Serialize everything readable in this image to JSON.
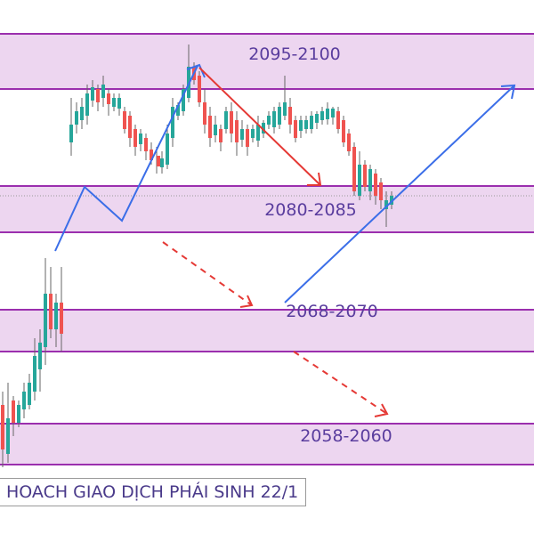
{
  "zones": [
    {
      "label": "2095-2100"
    },
    {
      "label": "2080-2085"
    },
    {
      "label": "2068-2070"
    },
    {
      "label": "2058-2060"
    }
  ],
  "caption": "HOACH GIAO DỊCH PHÁI SINH 22/1"
}
